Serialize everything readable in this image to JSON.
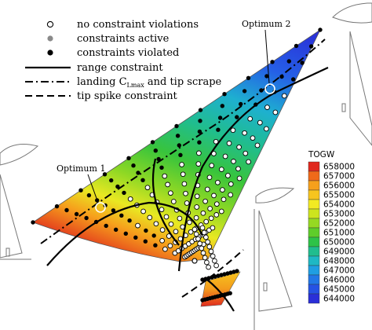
{
  "chart_data": {
    "type": "scatter",
    "title": "",
    "xlabel": "",
    "ylabel": "",
    "legend": {
      "placement": "top-left",
      "items": [
        {
          "key": "no_violation",
          "label": "no constraint violations",
          "marker": "open-circle"
        },
        {
          "key": "active",
          "label": "constraints active",
          "marker": "gray-dot"
        },
        {
          "key": "violated",
          "label": "constraints violated",
          "marker": "black-dot"
        },
        {
          "key": "range",
          "label": "range constraint",
          "line": "solid"
        },
        {
          "key": "landing",
          "label": "landing C",
          "sub": "Lmax",
          "suffix": " and tip scrape",
          "line": "dash-dot"
        },
        {
          "key": "tipspike",
          "label": "tip spike constraint",
          "line": "dashed"
        }
      ]
    },
    "colorbar": {
      "title": "TOGW",
      "ticks": [
        658000,
        657000,
        656000,
        655000,
        654000,
        653000,
        652000,
        651000,
        650000,
        649000,
        648000,
        647000,
        646000,
        645000,
        644000
      ],
      "colors": [
        "#e0281e",
        "#ef6a1a",
        "#f6a01c",
        "#f7c51e",
        "#f2ea22",
        "#cde41e",
        "#96d922",
        "#5fcd2a",
        "#2ec348",
        "#20bd8e",
        "#1eb8c4",
        "#1f9ee2",
        "#2277e6",
        "#2552e4",
        "#2a2fd8"
      ]
    },
    "annotations": [
      {
        "key": "opt1",
        "label": "Optimum 1"
      },
      {
        "key": "opt2",
        "label": "Optimum 2"
      }
    ]
  }
}
